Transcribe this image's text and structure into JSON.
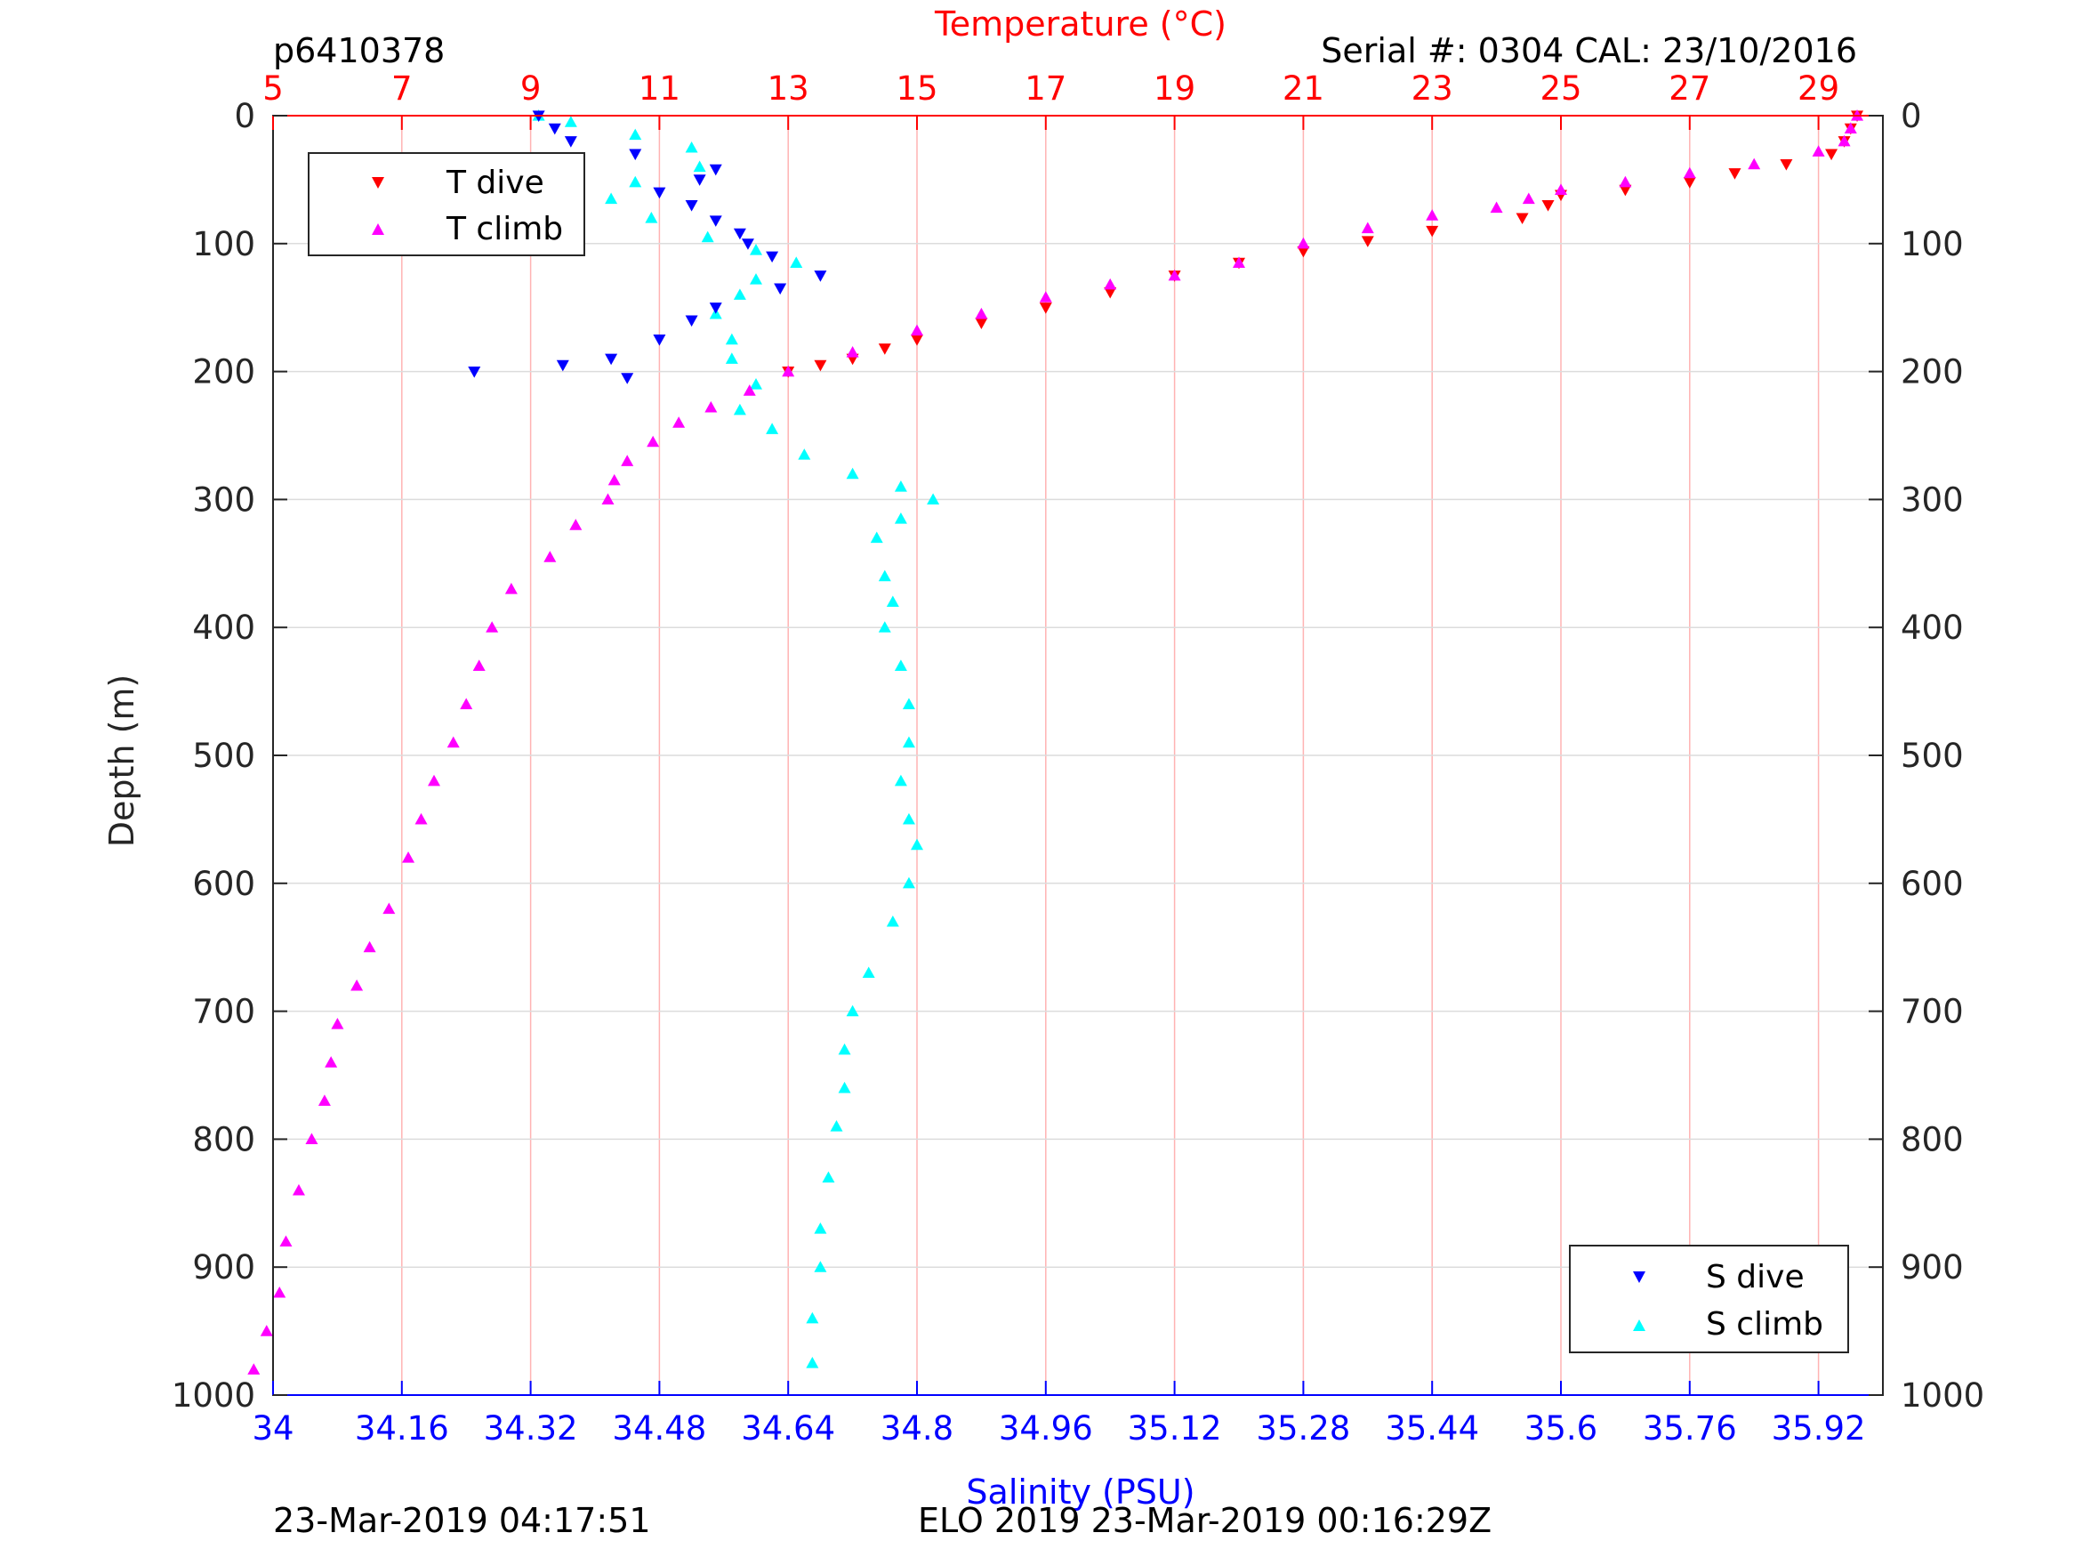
{
  "header": {
    "profile_id": "p6410378",
    "serial": "Serial #: 0304  CAL: 23/10/2016"
  },
  "footer": {
    "left": "23-Mar-2019 04:17:51",
    "center": "ELO 2019 23-Mar-2019 00:16:29Z"
  },
  "colors": {
    "t_dive": "#ff0000",
    "t_climb": "#ff00ff",
    "s_dive": "#0000ff",
    "s_climb": "#00ffff",
    "temp_axis": "#ff0000",
    "sal_axis": "#0000ff",
    "depth_axis": "#262626",
    "temp_grid": "#ffb3b3",
    "depth_grid": "#dcdcdc"
  },
  "chart_data": {
    "type": "scatter",
    "grid": true,
    "ylabel": "Depth (m)",
    "ylim": [
      0,
      1000
    ],
    "y_reversed": true,
    "y_ticks": [
      0,
      100,
      200,
      300,
      400,
      500,
      600,
      700,
      800,
      900,
      1000
    ],
    "temperature_axis": {
      "label": "Temperature (°C)",
      "position": "top",
      "range": [
        5,
        30
      ],
      "ticks": [
        5,
        7,
        9,
        11,
        13,
        15,
        17,
        19,
        21,
        23,
        25,
        27,
        29
      ]
    },
    "salinity_axis": {
      "label": "Salinity (PSU)",
      "position": "bottom",
      "range": [
        34,
        36
      ],
      "ticks": [
        34,
        34.16,
        34.32,
        34.48,
        34.64,
        34.8,
        34.96,
        35.12,
        35.28,
        35.44,
        35.6,
        35.76,
        35.92
      ]
    },
    "legend_temperature": {
      "placement": "top-left",
      "entries": [
        "T dive",
        "T climb"
      ]
    },
    "legend_salinity": {
      "placement": "bottom-right",
      "entries": [
        "S dive",
        "S climb"
      ]
    },
    "series": [
      {
        "name": "T dive",
        "axis": "temperature",
        "marker": "triangle-down",
        "points": [
          [
            29.6,
            0
          ],
          [
            29.5,
            10
          ],
          [
            29.4,
            20
          ],
          [
            29.2,
            30
          ],
          [
            28.5,
            38
          ],
          [
            27.7,
            45
          ],
          [
            27.0,
            52
          ],
          [
            26.0,
            58
          ],
          [
            25.0,
            62
          ],
          [
            24.8,
            70
          ],
          [
            24.4,
            80
          ],
          [
            23.0,
            90
          ],
          [
            22.0,
            98
          ],
          [
            21.0,
            106
          ],
          [
            20.0,
            115
          ],
          [
            19.0,
            125
          ],
          [
            18.0,
            138
          ],
          [
            17.0,
            150
          ],
          [
            16.0,
            162
          ],
          [
            15.0,
            175
          ],
          [
            14.5,
            182
          ],
          [
            14.0,
            190
          ],
          [
            13.5,
            195
          ],
          [
            13.0,
            200
          ]
        ]
      },
      {
        "name": "T climb",
        "axis": "temperature",
        "marker": "triangle-up",
        "points": [
          [
            29.6,
            0
          ],
          [
            29.5,
            10
          ],
          [
            29.4,
            20
          ],
          [
            29.0,
            28
          ],
          [
            28.0,
            38
          ],
          [
            27.0,
            45
          ],
          [
            26.0,
            52
          ],
          [
            25.0,
            58
          ],
          [
            24.5,
            65
          ],
          [
            24.0,
            72
          ],
          [
            23.0,
            78
          ],
          [
            22.0,
            88
          ],
          [
            21.0,
            100
          ],
          [
            20.0,
            115
          ],
          [
            19.0,
            125
          ],
          [
            18.0,
            132
          ],
          [
            17.0,
            142
          ],
          [
            16.0,
            155
          ],
          [
            15.0,
            168
          ],
          [
            14.0,
            185
          ],
          [
            13.0,
            200
          ],
          [
            12.4,
            215
          ],
          [
            11.8,
            228
          ],
          [
            11.3,
            240
          ],
          [
            10.9,
            255
          ],
          [
            10.5,
            270
          ],
          [
            10.3,
            285
          ],
          [
            10.2,
            300
          ],
          [
            9.7,
            320
          ],
          [
            9.3,
            345
          ],
          [
            8.7,
            370
          ],
          [
            8.4,
            400
          ],
          [
            8.2,
            430
          ],
          [
            8.0,
            460
          ],
          [
            7.8,
            490
          ],
          [
            7.5,
            520
          ],
          [
            7.3,
            550
          ],
          [
            7.1,
            580
          ],
          [
            6.8,
            620
          ],
          [
            6.5,
            650
          ],
          [
            6.3,
            680
          ],
          [
            6.0,
            710
          ],
          [
            5.9,
            740
          ],
          [
            5.8,
            770
          ],
          [
            5.6,
            800
          ],
          [
            5.4,
            840
          ],
          [
            5.2,
            880
          ],
          [
            5.1,
            920
          ],
          [
            4.9,
            950
          ],
          [
            4.7,
            980
          ]
        ]
      },
      {
        "name": "S dive",
        "axis": "salinity",
        "marker": "triangle-down",
        "points": [
          [
            34.33,
            0
          ],
          [
            34.35,
            10
          ],
          [
            34.37,
            20
          ],
          [
            34.45,
            30
          ],
          [
            34.55,
            42
          ],
          [
            34.53,
            50
          ],
          [
            34.48,
            60
          ],
          [
            34.52,
            70
          ],
          [
            34.55,
            82
          ],
          [
            34.58,
            92
          ],
          [
            34.59,
            100
          ],
          [
            34.62,
            110
          ],
          [
            34.68,
            125
          ],
          [
            34.63,
            135
          ],
          [
            34.55,
            150
          ],
          [
            34.52,
            160
          ],
          [
            34.48,
            175
          ],
          [
            34.42,
            190
          ],
          [
            34.36,
            195
          ],
          [
            34.25,
            200
          ],
          [
            34.44,
            205
          ]
        ]
      },
      {
        "name": "S climb",
        "axis": "salinity",
        "marker": "triangle-up",
        "points": [
          [
            34.33,
            0
          ],
          [
            34.37,
            5
          ],
          [
            34.45,
            15
          ],
          [
            34.52,
            25
          ],
          [
            34.53,
            40
          ],
          [
            34.45,
            52
          ],
          [
            34.42,
            65
          ],
          [
            34.47,
            80
          ],
          [
            34.54,
            95
          ],
          [
            34.6,
            105
          ],
          [
            34.65,
            115
          ],
          [
            34.6,
            128
          ],
          [
            34.58,
            140
          ],
          [
            34.55,
            155
          ],
          [
            34.57,
            175
          ],
          [
            34.57,
            190
          ],
          [
            34.6,
            210
          ],
          [
            34.58,
            230
          ],
          [
            34.62,
            245
          ],
          [
            34.66,
            265
          ],
          [
            34.72,
            280
          ],
          [
            34.78,
            290
          ],
          [
            34.82,
            300
          ],
          [
            34.78,
            315
          ],
          [
            34.75,
            330
          ],
          [
            34.76,
            360
          ],
          [
            34.77,
            380
          ],
          [
            34.76,
            400
          ],
          [
            34.78,
            430
          ],
          [
            34.79,
            460
          ],
          [
            34.79,
            490
          ],
          [
            34.78,
            520
          ],
          [
            34.79,
            550
          ],
          [
            34.8,
            570
          ],
          [
            34.79,
            600
          ],
          [
            34.77,
            630
          ],
          [
            34.74,
            670
          ],
          [
            34.72,
            700
          ],
          [
            34.71,
            730
          ],
          [
            34.71,
            760
          ],
          [
            34.7,
            790
          ],
          [
            34.69,
            830
          ],
          [
            34.68,
            870
          ],
          [
            34.68,
            900
          ],
          [
            34.67,
            940
          ],
          [
            34.67,
            975
          ]
        ]
      }
    ]
  }
}
